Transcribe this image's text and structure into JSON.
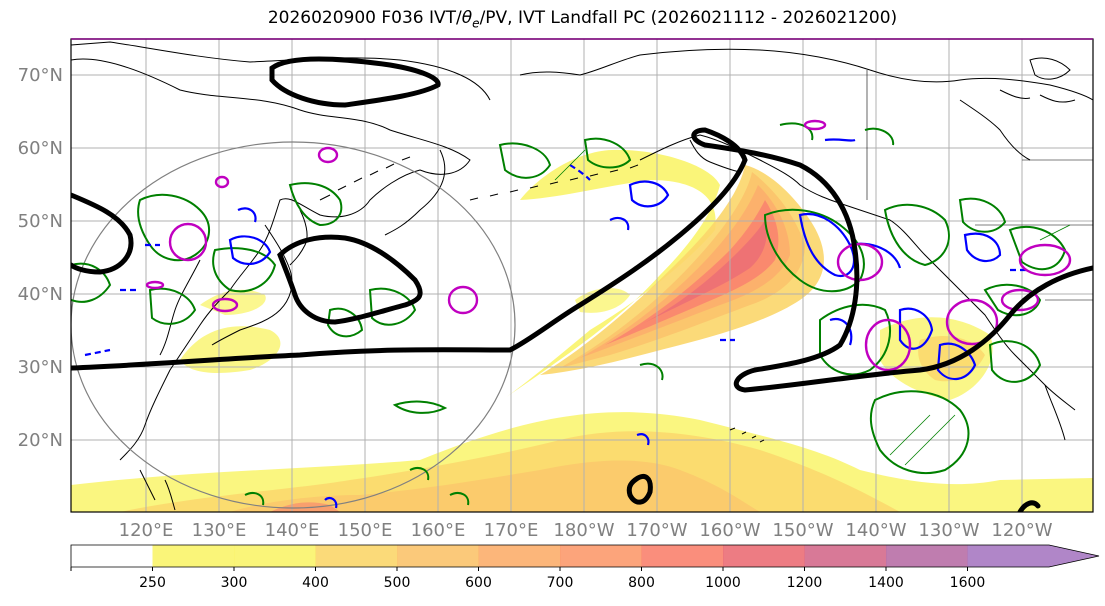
{
  "title": {
    "prefix": "2026020900 F036 IVT/",
    "theta": "θ",
    "theta_sub": "e",
    "suffix": "/PV, IVT Landfall PC (2026021112 - 2026021200)"
  },
  "map": {
    "lat_labels": [
      "70°N",
      "60°N",
      "50°N",
      "40°N",
      "30°N",
      "20°N"
    ],
    "lon_labels": [
      "120°E",
      "130°E",
      "140°E",
      "150°E",
      "160°E",
      "170°E",
      "180°W",
      "170°W",
      "160°W",
      "150°W",
      "140°W",
      "130°W",
      "120°W"
    ]
  },
  "colorbar": {
    "tick_labels": [
      "250",
      "300",
      "400",
      "500",
      "600",
      "700",
      "800",
      "1000",
      "1200",
      "1400",
      "1600"
    ],
    "colors": [
      "#f9f46a",
      "#f9f46a",
      "#fbd66a",
      "#fbc36b",
      "#fcae6c",
      "#fc9a6d",
      "#f9826e",
      "#eb6e76",
      "#d46a8c",
      "#b86fa6",
      "#a779c2"
    ]
  }
}
